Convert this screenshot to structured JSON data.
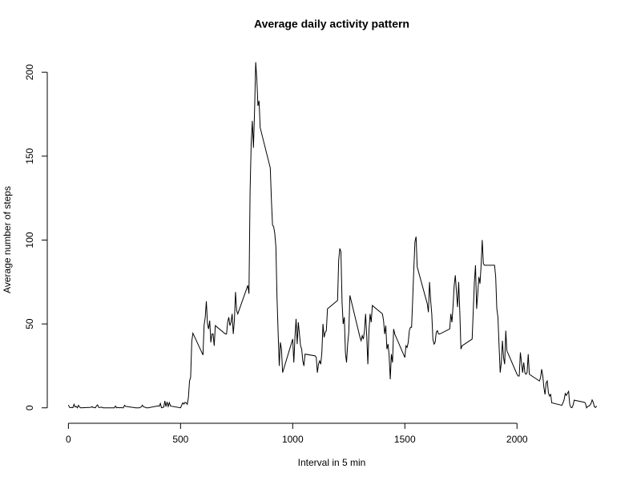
{
  "chart_data": {
    "type": "line",
    "title": "Average daily activity pattern",
    "x_label": "Interval in 5 min",
    "y_label": "Average number of steps",
    "xlim": [
      -94.2,
      2449.2
    ],
    "ylim": [
      -8.25,
      214.4
    ],
    "xticks": [
      0,
      500,
      1000,
      1500,
      2000
    ],
    "yticks": [
      0,
      50,
      100,
      150,
      200
    ],
    "color": "#000000",
    "x": [
      0,
      5,
      10,
      15,
      20,
      25,
      30,
      35,
      40,
      45,
      50,
      55,
      100,
      105,
      110,
      115,
      120,
      125,
      130,
      135,
      140,
      145,
      150,
      155,
      200,
      205,
      210,
      215,
      220,
      225,
      230,
      235,
      240,
      245,
      250,
      255,
      300,
      305,
      310,
      315,
      320,
      325,
      330,
      335,
      340,
      345,
      350,
      355,
      400,
      405,
      410,
      415,
      420,
      425,
      430,
      435,
      440,
      445,
      450,
      455,
      500,
      505,
      510,
      515,
      520,
      525,
      530,
      535,
      540,
      545,
      550,
      555,
      600,
      605,
      610,
      615,
      620,
      625,
      630,
      635,
      640,
      645,
      650,
      655,
      700,
      705,
      710,
      715,
      720,
      725,
      730,
      735,
      740,
      745,
      750,
      755,
      800,
      805,
      810,
      815,
      820,
      825,
      830,
      835,
      840,
      845,
      850,
      855,
      900,
      905,
      910,
      915,
      920,
      925,
      930,
      935,
      940,
      945,
      950,
      955,
      1000,
      1005,
      1010,
      1015,
      1020,
      1025,
      1030,
      1035,
      1040,
      1045,
      1050,
      1055,
      1100,
      1105,
      1110,
      1115,
      1120,
      1125,
      1130,
      1135,
      1140,
      1145,
      1150,
      1155,
      1200,
      1205,
      1210,
      1215,
      1220,
      1225,
      1230,
      1235,
      1240,
      1245,
      1250,
      1255,
      1300,
      1305,
      1310,
      1315,
      1320,
      1325,
      1330,
      1335,
      1340,
      1345,
      1350,
      1355,
      1400,
      1405,
      1410,
      1415,
      1420,
      1425,
      1430,
      1435,
      1440,
      1445,
      1450,
      1455,
      1500,
      1505,
      1510,
      1515,
      1520,
      1525,
      1530,
      1535,
      1540,
      1545,
      1550,
      1555,
      1600,
      1605,
      1610,
      1615,
      1620,
      1625,
      1630,
      1635,
      1640,
      1645,
      1650,
      1655,
      1700,
      1705,
      1710,
      1715,
      1720,
      1725,
      1730,
      1735,
      1740,
      1745,
      1750,
      1755,
      1800,
      1805,
      1810,
      1815,
      1820,
      1825,
      1830,
      1835,
      1840,
      1845,
      1850,
      1855,
      1900,
      1905,
      1910,
      1915,
      1920,
      1925,
      1930,
      1935,
      1940,
      1945,
      1950,
      1955,
      2000,
      2005,
      2010,
      2015,
      2020,
      2025,
      2030,
      2035,
      2040,
      2045,
      2050,
      2055,
      2100,
      2105,
      2110,
      2115,
      2120,
      2125,
      2130,
      2135,
      2140,
      2145,
      2150,
      2155,
      2200,
      2205,
      2210,
      2215,
      2220,
      2225,
      2230,
      2235,
      2240,
      2245,
      2250,
      2255,
      2300,
      2305,
      2310,
      2315,
      2320,
      2325,
      2330,
      2335,
      2340,
      2345,
      2350,
      2355
    ],
    "values": [
      1.7,
      0.3,
      0.1,
      0.2,
      0.1,
      2.1,
      0.5,
      0.9,
      0,
      1.5,
      0.4,
      0,
      0.3,
      0.7,
      0.2,
      0.3,
      0,
      1.1,
      1.8,
      0.2,
      0.2,
      0.4,
      0.3,
      0,
      0,
      0,
      1.1,
      0,
      0.2,
      0.1,
      0,
      0.2,
      0,
      0,
      1.5,
      0.9,
      0,
      0,
      0,
      0,
      0.2,
      0.6,
      1.6,
      0.6,
      0.5,
      0.1,
      0,
      0,
      1.2,
      0.9,
      2.6,
      0,
      0.3,
      0.4,
      4.1,
      0.7,
      3.5,
      0.8,
      3.1,
      1.1,
      0,
      1.6,
      3,
      2.2,
      3.3,
      3,
      2.1,
      6.1,
      16,
      18.3,
      39.5,
      44.5,
      31.5,
      49.3,
      53.8,
      63.5,
      50,
      47,
      52,
      39,
      44,
      44,
      37,
      49,
      44,
      44,
      51,
      54,
      49,
      51,
      56,
      44,
      52,
      69,
      58,
      56,
      73,
      68,
      129,
      158,
      171,
      155,
      177,
      206,
      196,
      180,
      183,
      167,
      143,
      124,
      109,
      108,
      104,
      96,
      66,
      45,
      25,
      39,
      35,
      21,
      41,
      27,
      42,
      53,
      38,
      51,
      44,
      37,
      35,
      28,
      25,
      32,
      31,
      30,
      21,
      26,
      28,
      26,
      33,
      50,
      42,
      45,
      46,
      59,
      64,
      88,
      95,
      93,
      63,
      50,
      54,
      33,
      27,
      38,
      45,
      67,
      42,
      40,
      43,
      41,
      46,
      56,
      43,
      26,
      46,
      56,
      51,
      61,
      56,
      52,
      44,
      49,
      35,
      38,
      31,
      17,
      32,
      27,
      47,
      44,
      30,
      37,
      36,
      39,
      46,
      48,
      48,
      65,
      83,
      99,
      102,
      84,
      62,
      57,
      75,
      64,
      56,
      41,
      38,
      39,
      45,
      46,
      44,
      44,
      47,
      56,
      51,
      61,
      73,
      79,
      69,
      60,
      75,
      57,
      35,
      37,
      41,
      58,
      75,
      85,
      59,
      68,
      78,
      74,
      85,
      100,
      86,
      85,
      85,
      78,
      59,
      54,
      37,
      21,
      27,
      40,
      30,
      26,
      46,
      34,
      20,
      19,
      19,
      33,
      27,
      21,
      27,
      21,
      20,
      21,
      32,
      20,
      16,
      18,
      23,
      19,
      12,
      8,
      15,
      16,
      9,
      7,
      8,
      3,
      1.5,
      3,
      4.8,
      8.5,
      7.4,
      8.7,
      9.8,
      2.2,
      0.3,
      0.1,
      1.6,
      4.6,
      3.3,
      2.8,
      0,
      0.8,
      1,
      1.6,
      2.6,
      4.7,
      3.3,
      0.6,
      0.2,
      1.1
    ]
  }
}
